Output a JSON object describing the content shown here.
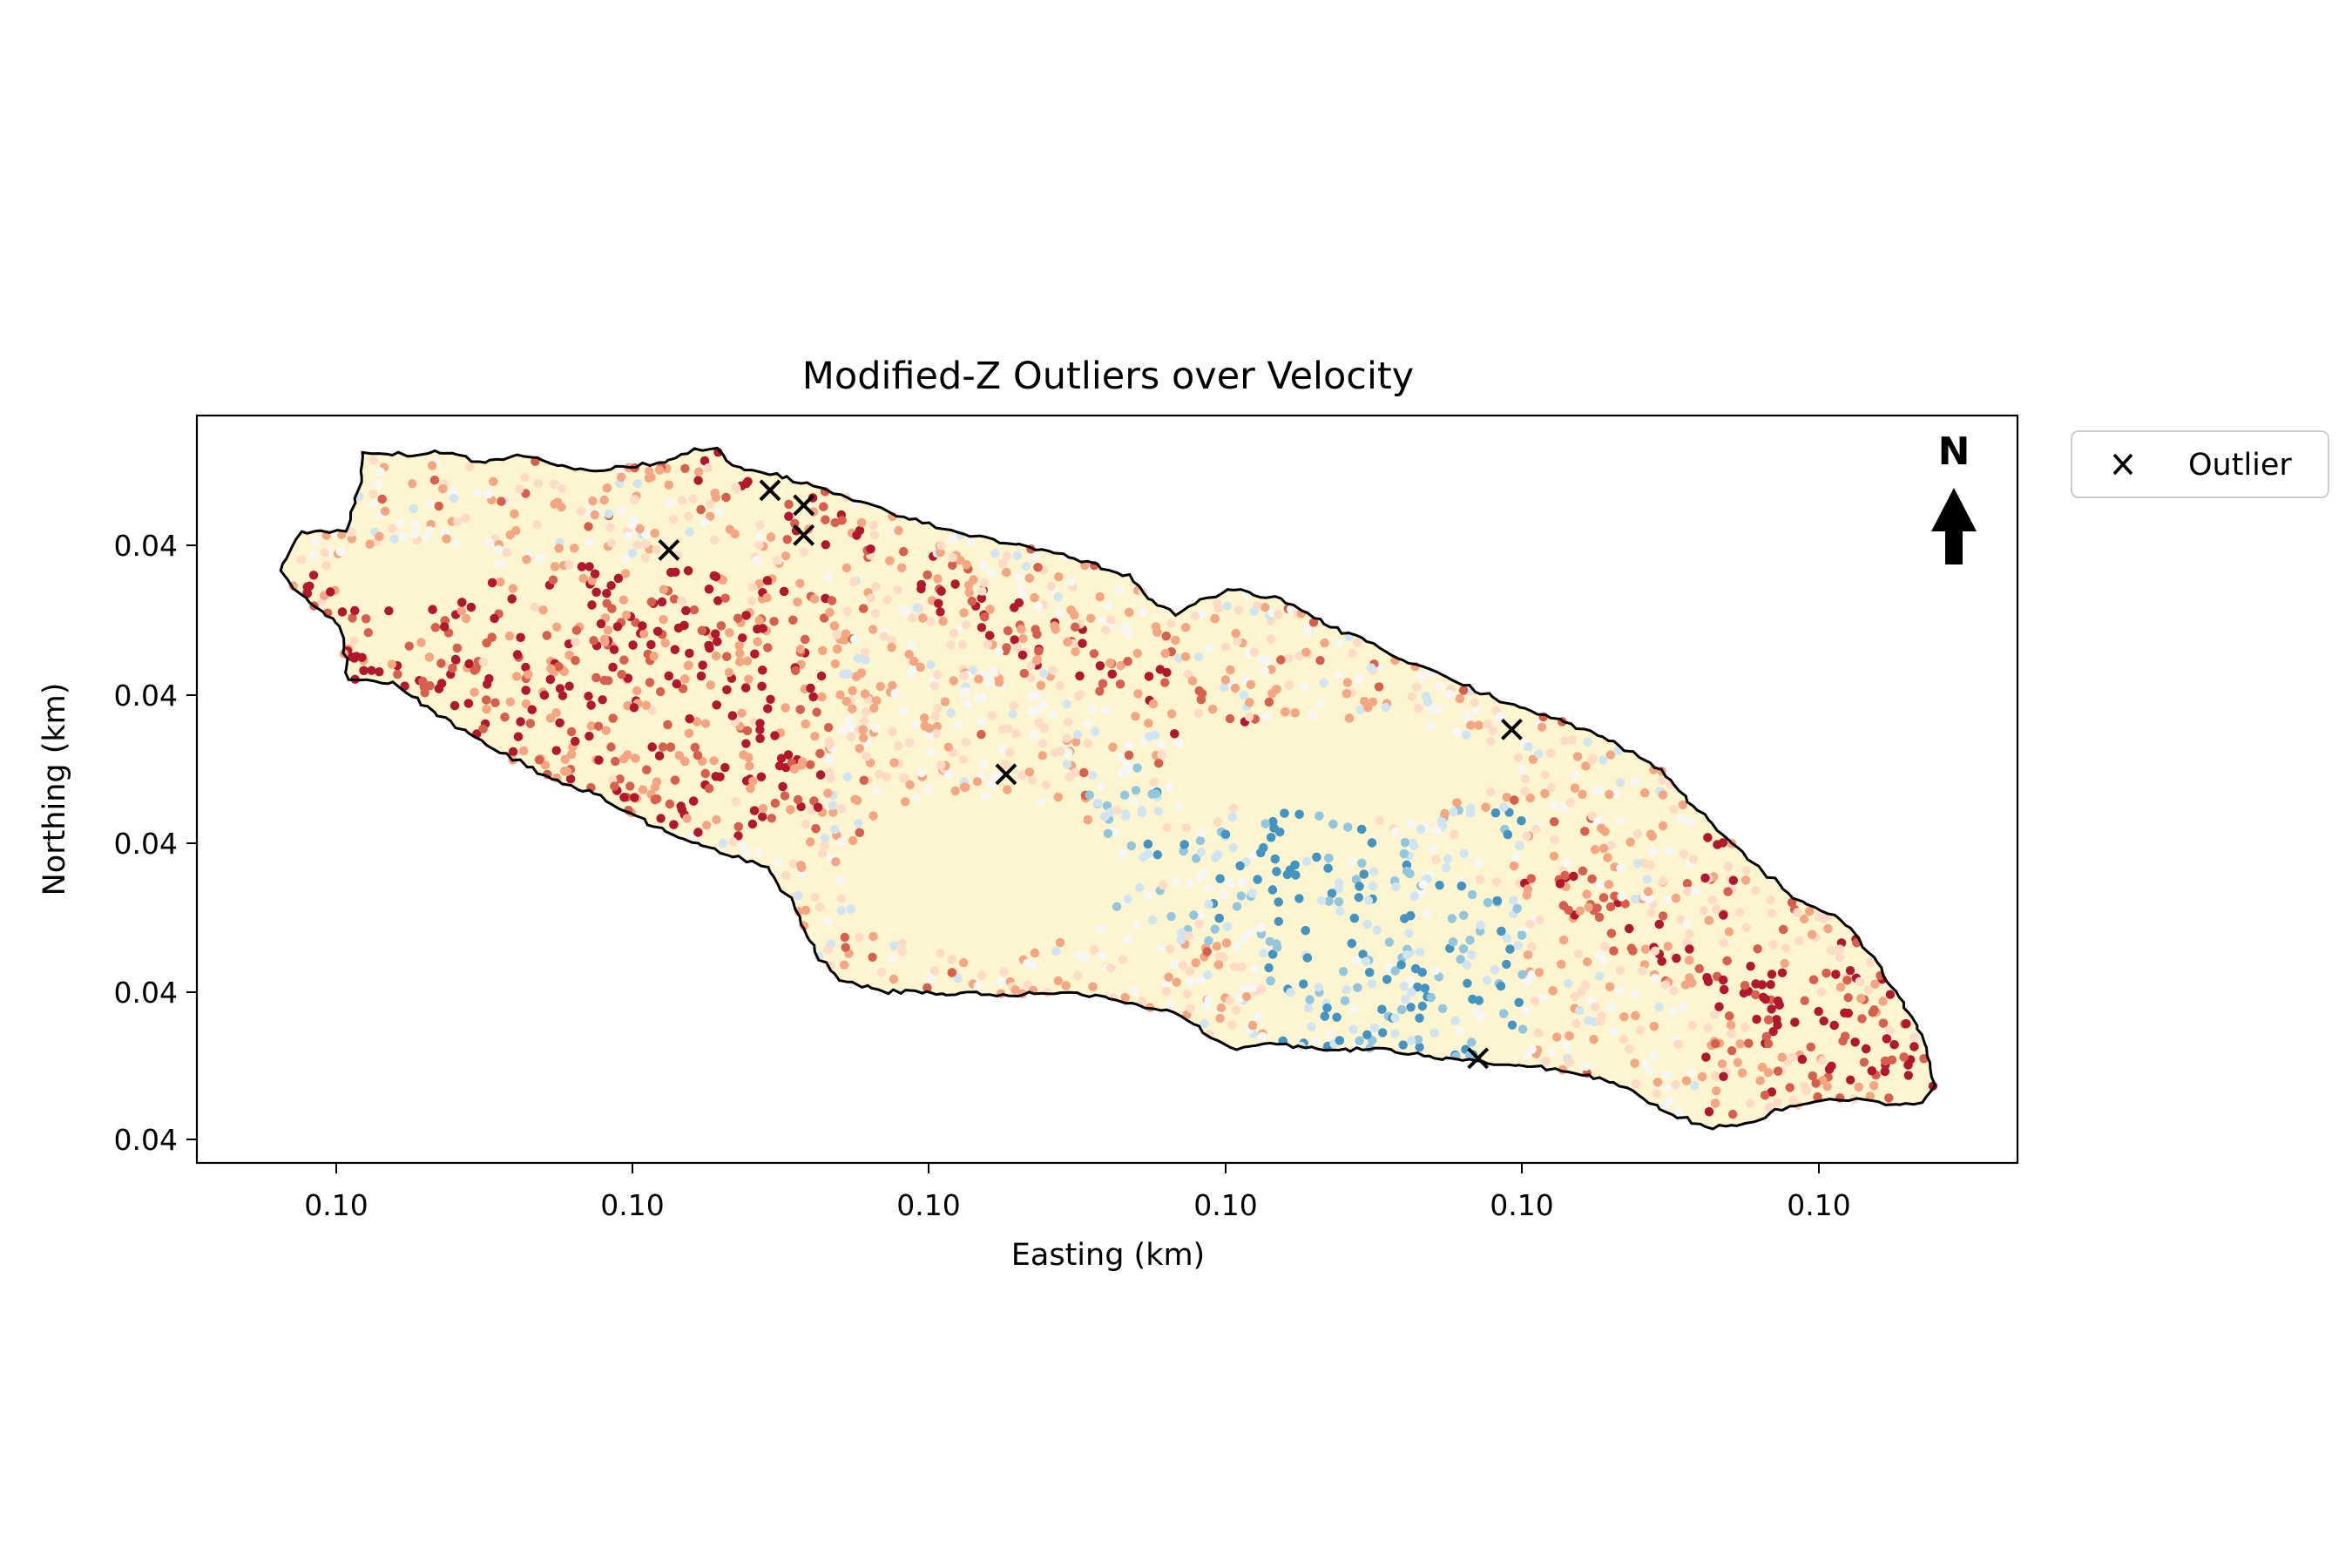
{
  "chart_data": {
    "type": "scatter",
    "title": "Modified-Z Outliers over Velocity",
    "xlabel": "Easting (km)",
    "ylabel": "Northing (km)",
    "x_tick_labels": [
      "0.10",
      "0.10",
      "0.10",
      "0.10",
      "0.10",
      "0.10"
    ],
    "y_tick_labels": [
      "0.04",
      "0.04",
      "0.04",
      "0.04",
      "0.04"
    ],
    "grid": false,
    "legend_placement": "outside upper right",
    "legend": [
      {
        "marker": "x",
        "label": "Outlier"
      }
    ],
    "north_arrow": {
      "label": "N"
    },
    "colormap": "RdYlBu_r",
    "colors": {
      "basin_fill": "#fdf5cf",
      "basin_outline": "#000000",
      "outlier_marker": "#000000",
      "low_velocity": "#4393c3",
      "high_velocity": "#b2182b"
    },
    "series": [
      {
        "name": "Outlier",
        "marker": "x",
        "points": [
          {
            "x": 0.0994,
            "y": 0.04041
          },
          {
            "x": 0.0997,
            "y": 0.04045
          },
          {
            "x": 0.0998,
            "y": 0.04044
          },
          {
            "x": 0.0998,
            "y": 0.04042
          },
          {
            "x": 0.1004,
            "y": 0.04026
          },
          {
            "x": 0.1018,
            "y": 0.04007
          },
          {
            "x": 0.1019,
            "y": 0.04029
          }
        ]
      }
    ]
  }
}
